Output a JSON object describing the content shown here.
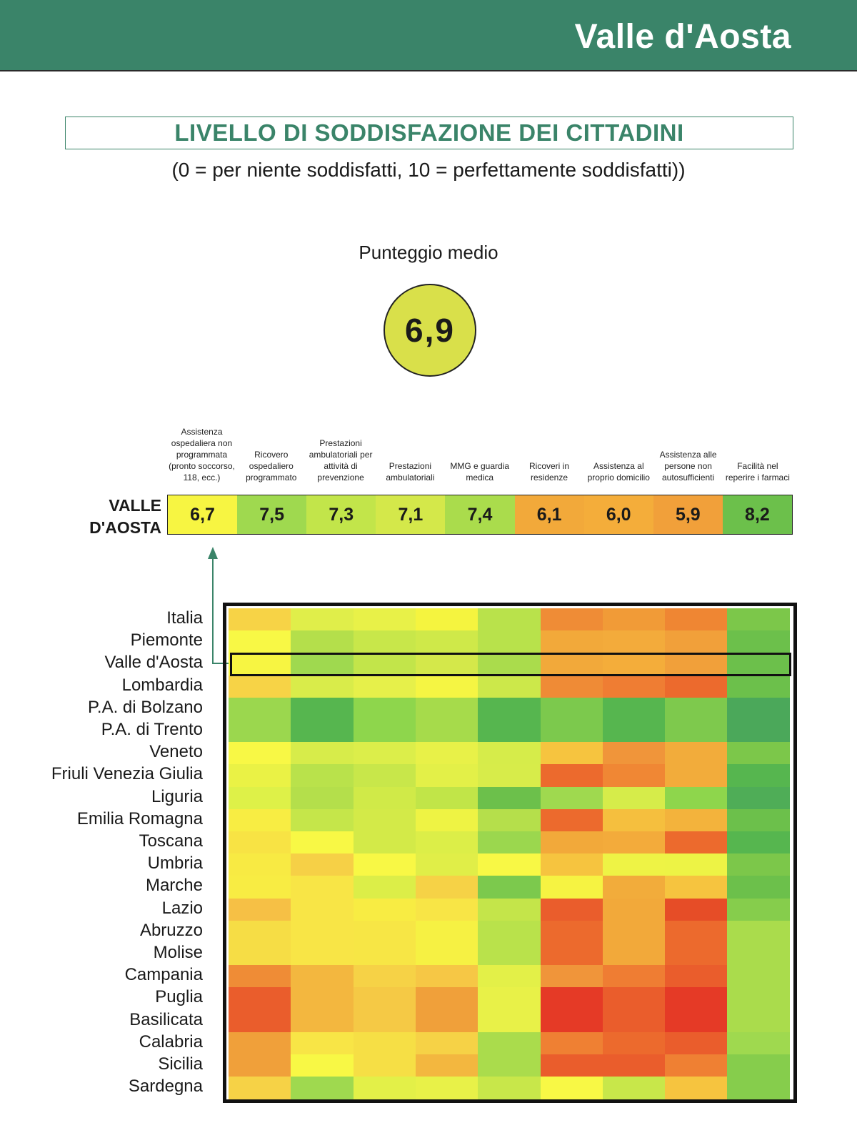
{
  "header": {
    "region": "Valle d'Aosta"
  },
  "section": {
    "title": "LIVELLO DI SODDISFAZIONE DEI CITTADINI",
    "scale_note": "(0 = per niente soddisfatti, 10 = perfettamente soddisfatti))"
  },
  "average": {
    "label": "Punteggio medio",
    "value": "6,9"
  },
  "colors": {
    "header": "#3a8469",
    "title": "#3a8469",
    "average_circle": "#d9e04a"
  },
  "chart_data": {
    "type": "heatmap",
    "categories": [
      "Assistenza ospedaliera non programmata (pronto soccorso, 118, ecc.)",
      "Ricovero ospedaliero programmato",
      "Prestazioni ambulatoriali per attività di prevenzione",
      "Prestazioni ambulatoriali",
      "MMG e guardia medica",
      "Ricoveri in residenze",
      "Assistenza al proprio domicilio",
      "Assistenza alle persone non autosufficienti",
      "Facilità nel reperire i farmaci"
    ],
    "selected_row": {
      "label": "VALLE D'AOSTA",
      "values": [
        6.7,
        7.5,
        7.3,
        7.1,
        7.4,
        6.1,
        6.0,
        5.9,
        8.2
      ],
      "display": [
        "6,7",
        "7,5",
        "7,3",
        "7,1",
        "7,4",
        "6,1",
        "6,0",
        "5,9",
        "8,2"
      ],
      "colors": [
        "#f7f542",
        "#9fd94f",
        "#c2e54a",
        "#d4e84a",
        "#aadc4c",
        "#f2a93a",
        "#f4ad3a",
        "#f1a03a",
        "#6cc04b"
      ]
    },
    "regions": [
      "Italia",
      "Piemonte",
      "Valle d'Aosta",
      "Lombardia",
      "P.A. di Bolzano",
      "P.A. di Trento",
      "Veneto",
      "Friuli Venezia Giulia",
      "Liguria",
      "Emilia Romagna",
      "Toscana",
      "Umbria",
      "Marche",
      "Lazio",
      "Abruzzo",
      "Molise",
      "Campania",
      "Puglia",
      "Basilicata",
      "Calabria",
      "Sicilia",
      "Sardegna"
    ],
    "highlighted_region": "Valle d'Aosta",
    "cell_colors": [
      [
        "#f7d346",
        "#e0ee4a",
        "#e8f148",
        "#f5f43f",
        "#b9e24b",
        "#ef8c36",
        "#f19b37",
        "#ef8633",
        "#7cc74a"
      ],
      [
        "#f8f845",
        "#b4df4b",
        "#c8e74a",
        "#cfe949",
        "#b8e24b",
        "#f2a93a",
        "#f3ab3b",
        "#f1a03a",
        "#6cc04b"
      ],
      [
        "#f7f542",
        "#9fd94f",
        "#c2e54a",
        "#d4e84a",
        "#aadc4c",
        "#f2a93a",
        "#f4ad3a",
        "#f1a03a",
        "#6cc04b"
      ],
      [
        "#f7d346",
        "#d9ec4a",
        "#e6f04a",
        "#f5f543",
        "#cce84a",
        "#ef8b36",
        "#ef7d33",
        "#ec6a2d",
        "#6cc04b"
      ],
      [
        "#9bd74e",
        "#56b64f",
        "#8ed64c",
        "#a6db4b",
        "#56b64f",
        "#7cc94d",
        "#56b64f",
        "#7ec94d",
        "#4ba85a"
      ],
      [
        "#9bd74e",
        "#56b64f",
        "#8ed64c",
        "#a6db4b",
        "#56b64f",
        "#7cc94d",
        "#56b64f",
        "#7ec94d",
        "#4ba85a"
      ],
      [
        "#f8f845",
        "#d7ec4a",
        "#dcee4a",
        "#e8f148",
        "#d6ec4a",
        "#f6c43f",
        "#f0953a",
        "#f2ac3b",
        "#7cc74a"
      ],
      [
        "#eaf245",
        "#b9e24b",
        "#c8e74a",
        "#e3f048",
        "#d7ec4a",
        "#ec6a2d",
        "#f08734",
        "#f2ac3b",
        "#56b64f"
      ],
      [
        "#def148",
        "#b4df4b",
        "#d0ea48",
        "#c1e548",
        "#6cc04b",
        "#9fd94f",
        "#d6ec4a",
        "#8ed64c",
        "#4fad57"
      ],
      [
        "#f8ed43",
        "#c5e64a",
        "#d3ea48",
        "#eef344",
        "#b5df4b",
        "#ec6a2d",
        "#f5bf3e",
        "#f3b33c",
        "#6cc04b"
      ],
      [
        "#f8e344",
        "#f8f845",
        "#d3ea48",
        "#dcee48",
        "#9bd74e",
        "#f2a93a",
        "#f3ab3b",
        "#ec6a2d",
        "#56b64f"
      ],
      [
        "#f8ea43",
        "#f6d046",
        "#f8f845",
        "#e0ee48",
        "#f8f845",
        "#f6c43f",
        "#eef345",
        "#edf345",
        "#7cc74a"
      ],
      [
        "#f8ec43",
        "#f8e546",
        "#dcee48",
        "#f6d246",
        "#7cc94d",
        "#f6f342",
        "#f2ac3b",
        "#f6c43f",
        "#6cc04b"
      ],
      [
        "#f6c045",
        "#f8e546",
        "#f8ec43",
        "#f8e546",
        "#c4e54a",
        "#ea5d2c",
        "#f2a93a",
        "#e64d27",
        "#86cd4c"
      ],
      [
        "#f6dd45",
        "#f8e546",
        "#f7e645",
        "#f6f143",
        "#b9e24b",
        "#ec6a2d",
        "#f2a93a",
        "#ec6a2d",
        "#aadc4c"
      ],
      [
        "#f6dd45",
        "#f8e546",
        "#f7e645",
        "#f6f143",
        "#b9e24b",
        "#ec6a2d",
        "#f2a93a",
        "#ec6a2d",
        "#aadc4c"
      ],
      [
        "#ef8c36",
        "#f3b73f",
        "#f6d246",
        "#f6c745",
        "#e3f048",
        "#f0953a",
        "#ef7d33",
        "#ea5d2c",
        "#aadc4c"
      ],
      [
        "#ea5d2c",
        "#f3b73f",
        "#f5c945",
        "#f0a03a",
        "#e8f148",
        "#e53a26",
        "#ea5d2c",
        "#e53a26",
        "#aadc4c"
      ],
      [
        "#ea5d2c",
        "#f3b73f",
        "#f5c945",
        "#f0a03a",
        "#e8f148",
        "#e53a26",
        "#ea5d2c",
        "#e53a26",
        "#aadc4c"
      ],
      [
        "#f0a03a",
        "#f8e546",
        "#f6df45",
        "#f6d246",
        "#aadc4c",
        "#ef8033",
        "#ec6a2d",
        "#ea5d2c",
        "#9fd94f"
      ],
      [
        "#f0a03a",
        "#f8f845",
        "#f6df45",
        "#f3b73f",
        "#aadc4c",
        "#ea5d2c",
        "#ea5d2c",
        "#ef8033",
        "#86cd4c"
      ],
      [
        "#f6d246",
        "#9fd94f",
        "#e3f048",
        "#e8f148",
        "#c8e74a",
        "#f8f845",
        "#c8e74a",
        "#f6c43f",
        "#86cd4c"
      ]
    ]
  }
}
